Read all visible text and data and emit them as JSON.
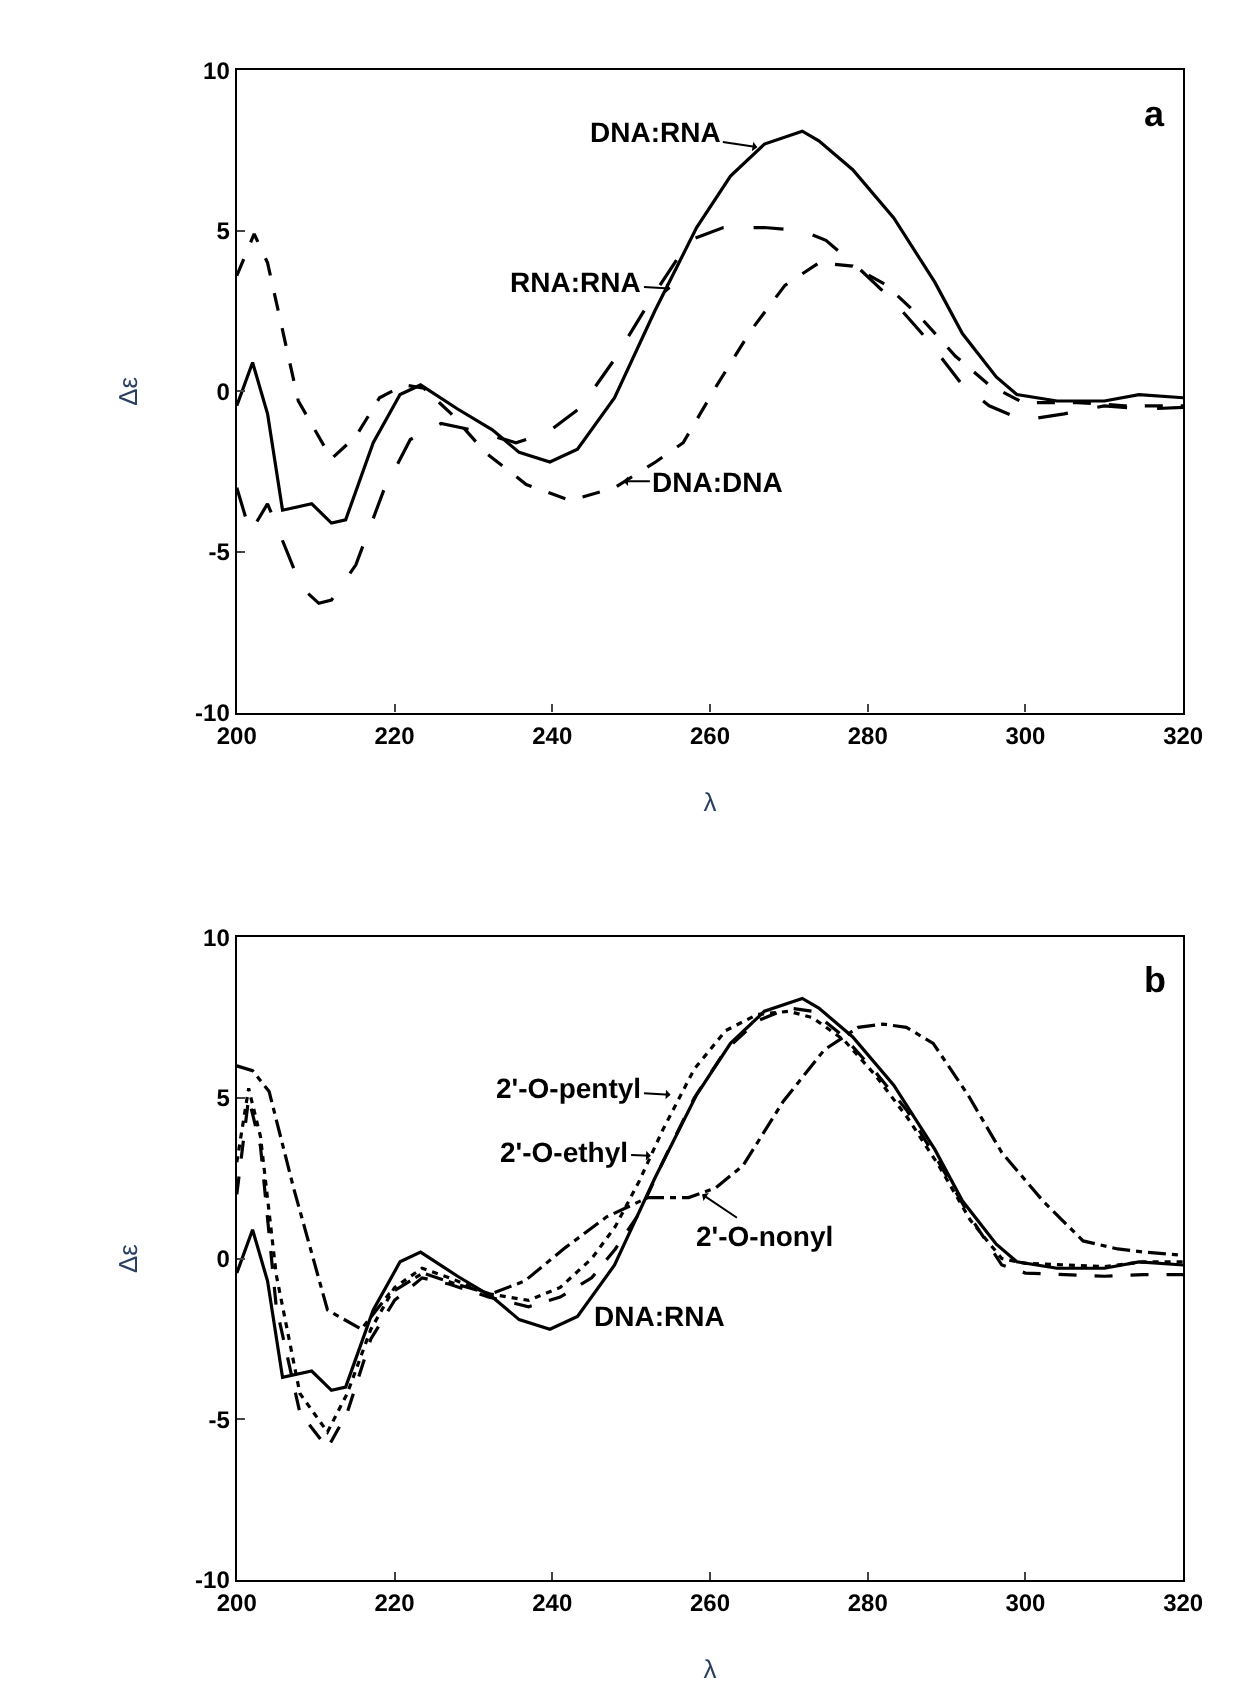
{
  "chart_data": [
    {
      "type": "line",
      "xlabel": "λ",
      "ylabel": "Δε",
      "xlim": [
        200,
        320
      ],
      "ylim": [
        -10,
        10
      ],
      "xticks": [
        200,
        220,
        240,
        260,
        280,
        300,
        320
      ],
      "yticks": [
        -10,
        -5,
        0,
        5,
        10
      ],
      "series": [
        {
          "color": "#000000",
          "line_style": "solid",
          "x": [
            200,
            202,
            203.9,
            205.8,
            209.5,
            212,
            213.8,
            217.3,
            220.7,
            223.3,
            228,
            232.4,
            235.8,
            239.7,
            243.2,
            247.9,
            253,
            258.3,
            262.6,
            266.9,
            271.7,
            273.8,
            278.1,
            283.3,
            288.5,
            292,
            296.3,
            298.9,
            304,
            310,
            314.4,
            320
          ],
          "values": [
            -0.45,
            0.9,
            -0.7,
            -3.7,
            -3.5,
            -4.1,
            -4.0,
            -1.6,
            -0.1,
            0.2,
            -0.55,
            -1.2,
            -1.9,
            -2.2,
            -1.8,
            -0.2,
            2.5,
            5.1,
            6.7,
            7.7,
            8.1,
            7.8,
            6.9,
            5.4,
            3.4,
            1.8,
            0.45,
            -0.1,
            -0.3,
            -0.3,
            -0.1,
            -0.2
          ]
        },
        {
          "color": "#000000",
          "line_style": "longdashed",
          "x": [
            200,
            201.7,
            203.9,
            208.2,
            210.4,
            212,
            215.1,
            218.6,
            222,
            225.9,
            229.8,
            235.4,
            239.3,
            243.6,
            247.9,
            253.1,
            257.4,
            261.7,
            266.9,
            271.7,
            274.7,
            279,
            283.3,
            287.6,
            292,
            295.4,
            299.7,
            304.9,
            310,
            315.2,
            320
          ],
          "values": [
            -3.0,
            -4.4,
            -3.5,
            -6.1,
            -6.6,
            -6.5,
            -5.4,
            -3.1,
            -1.5,
            -1.0,
            -1.2,
            -1.6,
            -1.3,
            -0.5,
            1.0,
            3.1,
            4.7,
            5.1,
            5.1,
            5.0,
            4.7,
            3.8,
            2.8,
            1.6,
            0.2,
            -0.45,
            -0.9,
            -0.7,
            -0.45,
            -0.55,
            -0.5
          ]
        },
        {
          "color": "#000000",
          "line_style": "dashed",
          "x": [
            200,
            202.2,
            203.9,
            207.8,
            212,
            215.1,
            218.1,
            221.2,
            223.7,
            227.2,
            231.5,
            236.7,
            242.3,
            247.9,
            253.1,
            256.6,
            260.9,
            265.2,
            269.5,
            273.8,
            278.1,
            282.4,
            286.7,
            291.1,
            295.4,
            299.7,
            306.6,
            312.6,
            320
          ],
          "values": [
            3.6,
            4.9,
            4.0,
            -0.3,
            -2.1,
            -1.4,
            -0.2,
            0.2,
            0.1,
            -0.7,
            -1.9,
            -2.9,
            -3.4,
            -3.0,
            -2.2,
            -1.6,
            0.2,
            1.9,
            3.3,
            4.0,
            3.9,
            3.3,
            2.3,
            1.1,
            0.2,
            -0.35,
            -0.35,
            -0.45,
            -0.45
          ]
        }
      ],
      "annotations": [
        {
          "text": "DNA:RNA",
          "x": 266,
          "y": 7.6
        },
        {
          "text": "RNA:RNA",
          "x": 255,
          "y": 3.2
        },
        {
          "text": "DNA:DNA",
          "x": 249,
          "y": -2.8
        },
        "a"
      ]
    },
    {
      "type": "line",
      "xlabel": "λ",
      "ylabel": "Δε",
      "xlim": [
        200,
        320
      ],
      "ylim": [
        -10,
        10
      ],
      "xticks": [
        200,
        220,
        240,
        260,
        280,
        300,
        320
      ],
      "yticks": [
        -10,
        -5,
        0,
        5,
        10
      ],
      "series": [
        {
          "color": "#000000",
          "line_style": "solid",
          "x": [
            200,
            202,
            203.9,
            205.8,
            209.5,
            212,
            213.8,
            217.3,
            220.7,
            223.3,
            228,
            232.4,
            235.8,
            239.7,
            243.2,
            247.9,
            253,
            258.3,
            262.6,
            266.9,
            271.7,
            273.8,
            278.1,
            283.3,
            288.5,
            292,
            296.3,
            298.9,
            304,
            310,
            314.4,
            320
          ],
          "values": [
            -0.45,
            0.9,
            -0.7,
            -3.7,
            -3.5,
            -4.1,
            -4.0,
            -1.6,
            -0.1,
            0.2,
            -0.55,
            -1.2,
            -1.9,
            -2.2,
            -1.8,
            -0.2,
            2.5,
            5.1,
            6.7,
            7.7,
            8.1,
            7.8,
            6.9,
            5.4,
            3.4,
            1.8,
            0.45,
            -0.1,
            -0.3,
            -0.3,
            -0.1,
            -0.2
          ]
        },
        {
          "color": "#000000",
          "line_style": "dashed",
          "x": [
            200,
            201.5,
            203,
            205,
            208,
            211.5,
            214,
            217,
            220,
            223.5,
            227,
            232,
            237,
            241,
            245,
            248,
            251,
            254,
            258,
            262,
            266,
            270,
            273,
            277,
            281,
            285,
            289,
            293,
            297,
            300,
            305,
            310,
            315,
            320
          ],
          "values": [
            2.0,
            5.0,
            3.5,
            -1.5,
            -4.8,
            -5.9,
            -4.8,
            -2.5,
            -1.3,
            -0.6,
            -0.8,
            -1.2,
            -1.5,
            -1.2,
            -0.6,
            0.3,
            1.4,
            3.0,
            5.0,
            6.5,
            7.4,
            7.8,
            7.7,
            6.9,
            5.8,
            4.6,
            3.0,
            1.3,
            -0.2,
            -0.45,
            -0.5,
            -0.55,
            -0.5,
            -0.5
          ]
        },
        {
          "color": "#000000",
          "line_style": "dotted",
          "x": [
            200,
            201.5,
            203,
            205,
            208,
            211.5,
            214,
            217,
            220,
            223.5,
            227,
            232,
            237,
            241,
            245,
            248,
            251,
            254,
            258,
            262,
            266,
            270,
            273,
            277,
            281,
            285,
            289,
            293,
            297,
            300,
            305,
            310,
            315,
            320
          ],
          "values": [
            3.0,
            5.3,
            3.8,
            -0.5,
            -4.2,
            -5.4,
            -4.2,
            -2.2,
            -0.9,
            -0.3,
            -0.6,
            -1.1,
            -1.3,
            -0.9,
            0.0,
            1.0,
            2.4,
            4.0,
            5.9,
            7.1,
            7.6,
            7.7,
            7.5,
            6.8,
            5.7,
            4.4,
            2.9,
            1.2,
            0.0,
            -0.15,
            -0.2,
            -0.25,
            -0.1,
            -0.1
          ]
        },
        {
          "color": "#000000",
          "line_style": "dashdot",
          "x": [
            200,
            202,
            204.1,
            207.2,
            211.5,
            215.8,
            219.3,
            223.6,
            227.9,
            232.2,
            236.5,
            241.7,
            246.9,
            252.1,
            257.3,
            260.7,
            264.2,
            269.3,
            274.5,
            278.8,
            281.9,
            284.9,
            288.3,
            292.7,
            297,
            302.2,
            307.3,
            311.7,
            315.1,
            320
          ],
          "values": [
            6.0,
            5.85,
            5.2,
            2.2,
            -1.6,
            -2.2,
            -1.1,
            -0.45,
            -0.8,
            -1.1,
            -0.7,
            0.35,
            1.3,
            1.9,
            1.9,
            2.2,
            2.9,
            4.9,
            6.5,
            7.2,
            7.3,
            7.2,
            6.7,
            5.1,
            3.3,
            1.8,
            0.55,
            0.3,
            0.2,
            0.1
          ]
        }
      ],
      "annotations": [
        {
          "text": "2'-O-pentyl",
          "x": 255,
          "y": 5.1
        },
        {
          "text": "2'-O-ethyl",
          "x": 252.5,
          "y": 3.2
        },
        {
          "text": "2'-O-nonyl",
          "x": 259,
          "y": 2.0
        },
        {
          "text": "DNA:RNA",
          "x": 245.6,
          "y": -1.2
        },
        "b"
      ]
    }
  ]
}
